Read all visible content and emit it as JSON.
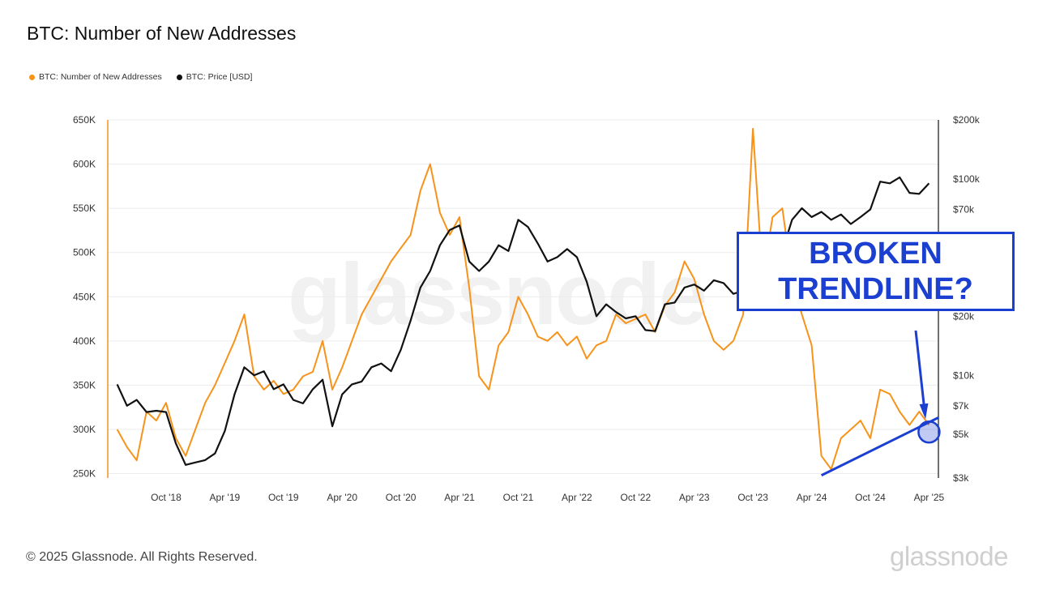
{
  "title": "BTC: Number of New Addresses",
  "legend": [
    {
      "label": "BTC: Number of New Addresses",
      "color": "#f7931a"
    },
    {
      "label": "BTC: Price [USD]",
      "color": "#111111"
    }
  ],
  "annotation": {
    "line1": "BROKEN",
    "line2": "TRENDLINE?",
    "color": "#1b3fd0"
  },
  "footer": "© 2025 Glassnode. All Rights Reserved.",
  "brand": "glassnode",
  "watermark": "glassnode",
  "chart_data": {
    "type": "line",
    "left_axis": {
      "ticks": [
        "650K",
        "600K",
        "550K",
        "500K",
        "450K",
        "400K",
        "350K",
        "300K",
        "250K"
      ],
      "tick_values": [
        650000,
        600000,
        550000,
        500000,
        450000,
        400000,
        350000,
        300000,
        250000
      ],
      "ylim": [
        245000,
        650000
      ]
    },
    "right_axis": {
      "scale": "log",
      "ticks": [
        "$200k",
        "$100k",
        "$70k",
        "$20k",
        "$10k",
        "$7k",
        "$5k",
        "$3k"
      ],
      "tick_values": [
        200000,
        100000,
        70000,
        20000,
        10000,
        7000,
        5000,
        3000
      ],
      "ylim": [
        3000,
        200000
      ]
    },
    "x_ticks": [
      "Oct '18",
      "Apr '19",
      "Oct '19",
      "Apr '20",
      "Oct '20",
      "Apr '21",
      "Oct '21",
      "Apr '22",
      "Oct '22",
      "Apr '23",
      "Oct '23",
      "Apr '24",
      "Oct '24",
      "Apr '25"
    ],
    "x_tick_dates": [
      "2018-10",
      "2019-04",
      "2019-10",
      "2020-04",
      "2020-10",
      "2021-04",
      "2021-10",
      "2022-04",
      "2022-10",
      "2023-04",
      "2023-10",
      "2024-04",
      "2024-10",
      "2025-04"
    ],
    "series": [
      {
        "name": "BTC: Number of New Addresses",
        "axis": "left",
        "color": "#f7931a",
        "x": [
          "2018-05",
          "2018-06",
          "2018-07",
          "2018-08",
          "2018-09",
          "2018-10",
          "2018-11",
          "2018-12",
          "2019-01",
          "2019-02",
          "2019-03",
          "2019-04",
          "2019-05",
          "2019-06",
          "2019-07",
          "2019-08",
          "2019-09",
          "2019-10",
          "2019-11",
          "2019-12",
          "2020-01",
          "2020-02",
          "2020-03",
          "2020-04",
          "2020-05",
          "2020-06",
          "2020-07",
          "2020-08",
          "2020-09",
          "2020-10",
          "2020-11",
          "2020-12",
          "2021-01",
          "2021-02",
          "2021-03",
          "2021-04",
          "2021-05",
          "2021-06",
          "2021-07",
          "2021-08",
          "2021-09",
          "2021-10",
          "2021-11",
          "2021-12",
          "2022-01",
          "2022-02",
          "2022-03",
          "2022-04",
          "2022-05",
          "2022-06",
          "2022-07",
          "2022-08",
          "2022-09",
          "2022-10",
          "2022-11",
          "2022-12",
          "2023-01",
          "2023-02",
          "2023-03",
          "2023-04",
          "2023-05",
          "2023-06",
          "2023-07",
          "2023-08",
          "2023-09",
          "2023-10",
          "2023-11",
          "2023-12",
          "2024-01",
          "2024-02",
          "2024-03",
          "2024-04",
          "2024-05",
          "2024-06",
          "2024-07",
          "2024-08",
          "2024-09",
          "2024-10",
          "2024-11",
          "2024-12",
          "2025-01",
          "2025-02",
          "2025-03",
          "2025-04"
        ],
        "values": [
          300000,
          280000,
          265000,
          320000,
          310000,
          330000,
          290000,
          270000,
          300000,
          330000,
          350000,
          375000,
          400000,
          430000,
          360000,
          345000,
          355000,
          340000,
          345000,
          360000,
          365000,
          400000,
          345000,
          370000,
          400000,
          430000,
          450000,
          470000,
          490000,
          505000,
          520000,
          570000,
          600000,
          545000,
          520000,
          540000,
          460000,
          360000,
          345000,
          395000,
          410000,
          450000,
          430000,
          405000,
          400000,
          410000,
          395000,
          405000,
          380000,
          395000,
          400000,
          430000,
          420000,
          425000,
          430000,
          410000,
          440000,
          455000,
          490000,
          470000,
          430000,
          400000,
          390000,
          400000,
          430000,
          640000,
          470000,
          540000,
          550000,
          470000,
          430000,
          395000,
          270000,
          255000,
          290000,
          300000,
          310000,
          290000,
          345000,
          340000,
          320000,
          305000,
          320000,
          305000
        ]
      },
      {
        "name": "BTC: Price [USD]",
        "axis": "right",
        "color": "#111111",
        "x": [
          "2018-05",
          "2018-06",
          "2018-07",
          "2018-08",
          "2018-09",
          "2018-10",
          "2018-11",
          "2018-12",
          "2019-01",
          "2019-02",
          "2019-03",
          "2019-04",
          "2019-05",
          "2019-06",
          "2019-07",
          "2019-08",
          "2019-09",
          "2019-10",
          "2019-11",
          "2019-12",
          "2020-01",
          "2020-02",
          "2020-03",
          "2020-04",
          "2020-05",
          "2020-06",
          "2020-07",
          "2020-08",
          "2020-09",
          "2020-10",
          "2020-11",
          "2020-12",
          "2021-01",
          "2021-02",
          "2021-03",
          "2021-04",
          "2021-05",
          "2021-06",
          "2021-07",
          "2021-08",
          "2021-09",
          "2021-10",
          "2021-11",
          "2021-12",
          "2022-01",
          "2022-02",
          "2022-03",
          "2022-04",
          "2022-05",
          "2022-06",
          "2022-07",
          "2022-08",
          "2022-09",
          "2022-10",
          "2022-11",
          "2022-12",
          "2023-01",
          "2023-02",
          "2023-03",
          "2023-04",
          "2023-05",
          "2023-06",
          "2023-07",
          "2023-08",
          "2023-09",
          "2023-10",
          "2023-11",
          "2023-12",
          "2024-01",
          "2024-02",
          "2024-03",
          "2024-04",
          "2024-05",
          "2024-06",
          "2024-07",
          "2024-08",
          "2024-09",
          "2024-10",
          "2024-11",
          "2024-12",
          "2025-01",
          "2025-02",
          "2025-03",
          "2025-04"
        ],
        "values": [
          9000,
          7000,
          7500,
          6500,
          6600,
          6500,
          4500,
          3500,
          3600,
          3700,
          4000,
          5200,
          8000,
          11000,
          10000,
          10500,
          8500,
          9000,
          7500,
          7200,
          8500,
          9500,
          5500,
          8000,
          9000,
          9300,
          11000,
          11500,
          10500,
          13500,
          19000,
          28000,
          34000,
          46000,
          55000,
          58000,
          38000,
          34000,
          38000,
          46000,
          43000,
          62000,
          57000,
          47000,
          38000,
          40000,
          44000,
          40000,
          30000,
          20000,
          23000,
          21000,
          19500,
          20000,
          17000,
          16800,
          23000,
          23500,
          28000,
          29000,
          27000,
          30500,
          29500,
          26000,
          27000,
          34500,
          38000,
          43000,
          43000,
          62000,
          71000,
          64000,
          68000,
          62000,
          66000,
          59000,
          64000,
          70000,
          97000,
          95000,
          102000,
          85000,
          84000,
          95000
        ]
      }
    ],
    "trendline": {
      "from": {
        "x": "2024-05",
        "y": 248000
      },
      "to": {
        "x": "2025-04",
        "y": 308000
      }
    },
    "highlight_point": {
      "x": "2025-04",
      "y": 297000
    },
    "grid": "horizontal"
  }
}
